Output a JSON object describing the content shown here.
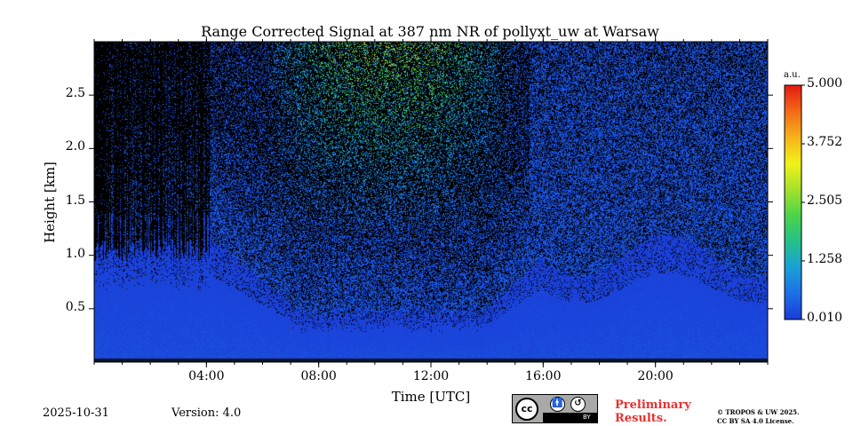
{
  "chart_data": {
    "type": "heatmap",
    "title": "Range Corrected Signal at 387 nm NR of pollyxt_uw at Warsaw",
    "xlabel": "Time [UTC]",
    "ylabel": "Height [km]",
    "x_range_hours": [
      0,
      24
    ],
    "y_range_km": [
      0,
      3.0
    ],
    "x_ticks": [
      {
        "value": 4,
        "label": "04:00"
      },
      {
        "value": 8,
        "label": "08:00"
      },
      {
        "value": 12,
        "label": "12:00"
      },
      {
        "value": 16,
        "label": "16:00"
      },
      {
        "value": 20,
        "label": "20:00"
      }
    ],
    "x_minor_step_hours": 1,
    "y_ticks": [
      {
        "value": 0.5,
        "label": "0.5"
      },
      {
        "value": 1.0,
        "label": "1.0"
      },
      {
        "value": 1.5,
        "label": "1.5"
      },
      {
        "value": 2.0,
        "label": "2.0"
      },
      {
        "value": 2.5,
        "label": "2.5"
      }
    ],
    "colorbar": {
      "unit": "a.u.",
      "range": [
        0.01,
        5.0
      ],
      "ticks": [
        {
          "value": 0.01,
          "label": "0.010"
        },
        {
          "value": 1.258,
          "label": "1.258"
        },
        {
          "value": 2.505,
          "label": "2.505"
        },
        {
          "value": 3.752,
          "label": "3.752"
        },
        {
          "value": 5.0,
          "label": "5.000"
        }
      ],
      "colors": [
        "#1a3cd8",
        "#1c6fe6",
        "#1aa0d6",
        "#25c08a",
        "#4cd44a",
        "#a6e22a",
        "#f2f21a",
        "#f6b21a",
        "#f26a16",
        "#e41a14"
      ]
    },
    "features": {
      "night_no_data_until_hour": 4.1,
      "bright_aerosol_layer_hours": [
        6,
        15
      ],
      "boundary_layer_top_km_morning": 1.0,
      "boundary_layer_top_km_midday": 0.4,
      "ground_band_km": 0.04
    }
  },
  "footer": {
    "date": "2025-10-31",
    "version": "Version: 4.0",
    "preliminary_line1": "Preliminary",
    "preliminary_line2": "Results.",
    "copyright_line1": "© TROPOS & UW 2025.",
    "copyright_line2": "CC BY SA 4.0 License.",
    "cc_label": "cc",
    "by_label": "BY",
    "sa_label": "SA"
  }
}
